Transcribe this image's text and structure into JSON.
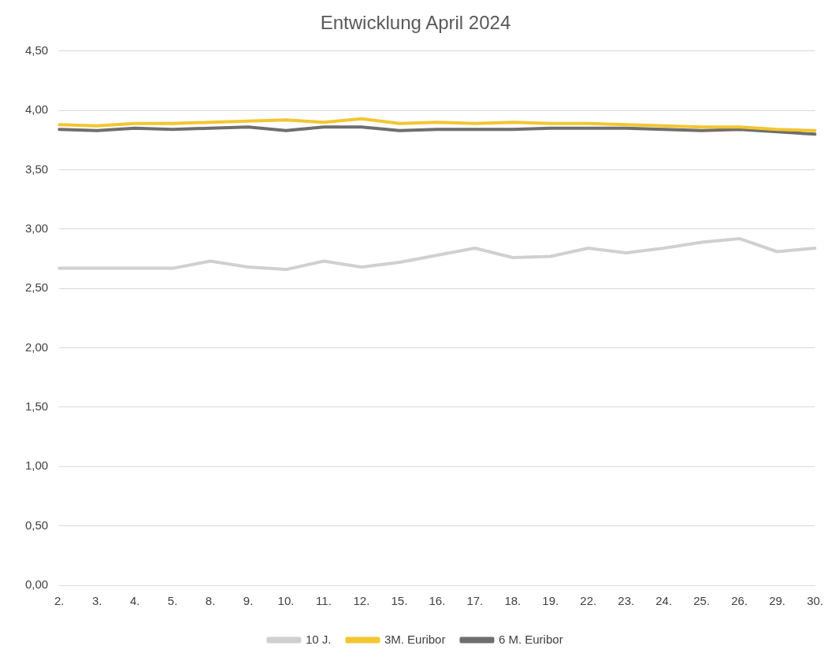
{
  "chart_data": {
    "type": "line",
    "title": "Entwicklung April 2024",
    "categories": [
      "2.",
      "3.",
      "4.",
      "5.",
      "8.",
      "9.",
      "10.",
      "11.",
      "12.",
      "15.",
      "16.",
      "17.",
      "18.",
      "19.",
      "22.",
      "23.",
      "24.",
      "25.",
      "26.",
      "29.",
      "30."
    ],
    "series": [
      {
        "name": "10 J.",
        "color": "#d0d0d0",
        "values": [
          2.67,
          2.67,
          2.67,
          2.67,
          2.73,
          2.68,
          2.66,
          2.73,
          2.68,
          2.72,
          2.78,
          2.84,
          2.76,
          2.77,
          2.84,
          2.8,
          2.84,
          2.89,
          2.92,
          2.81,
          2.84
        ]
      },
      {
        "name": "3M. Euribor",
        "color": "#f2c631",
        "values": [
          3.88,
          3.87,
          3.89,
          3.89,
          3.9,
          3.91,
          3.92,
          3.9,
          3.93,
          3.89,
          3.9,
          3.89,
          3.9,
          3.89,
          3.89,
          3.88,
          3.87,
          3.86,
          3.86,
          3.84,
          3.83
        ]
      },
      {
        "name": "6 M. Euribor",
        "color": "#6e6e6e",
        "values": [
          3.84,
          3.83,
          3.85,
          3.84,
          3.85,
          3.86,
          3.83,
          3.86,
          3.86,
          3.83,
          3.84,
          3.84,
          3.84,
          3.85,
          3.85,
          3.85,
          3.84,
          3.83,
          3.84,
          3.82,
          3.8
        ]
      }
    ],
    "ylim": [
      0,
      4.5
    ],
    "yticks": [
      {
        "value": 0,
        "label": "0,00"
      },
      {
        "value": 0.5,
        "label": "0,50"
      },
      {
        "value": 1,
        "label": "1,00"
      },
      {
        "value": 1.5,
        "label": "1,50"
      },
      {
        "value": 2,
        "label": "2,00"
      },
      {
        "value": 2.5,
        "label": "2,50"
      },
      {
        "value": 3,
        "label": "3,00"
      },
      {
        "value": 3.5,
        "label": "3,50"
      },
      {
        "value": 4,
        "label": "4,00"
      },
      {
        "value": 4.5,
        "label": "4,50"
      }
    ],
    "grid": "y",
    "legend": "bottom",
    "marker": "none",
    "line_style": "solid"
  }
}
